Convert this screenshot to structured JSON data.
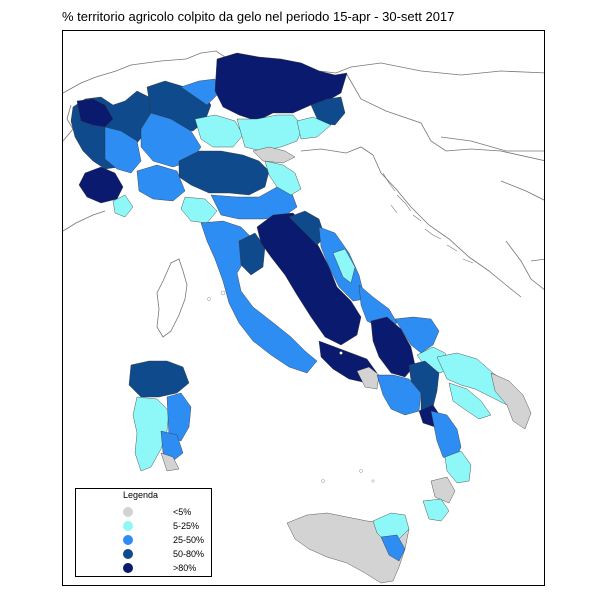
{
  "title": "% territorio agricolo colpito da gelo nel periodo 15-apr - 30-sett 2017",
  "colors": {
    "lt5": "#d3d3d3",
    "c5_25": "#8ef7f7",
    "c25_50": "#2d8df2",
    "c50_80": "#0f4a8c",
    "gt80": "#0a1a6e",
    "border": "#000000",
    "land_outline": "#888888"
  },
  "legend": {
    "title": "Legenda",
    "items": [
      {
        "label": "<5%",
        "color": "#d3d3d3"
      },
      {
        "label": "5-25%",
        "color": "#8ef7f7"
      },
      {
        "label": "25-50%",
        "color": "#2d8df2"
      },
      {
        "label": "50-80%",
        "color": "#0f4a8c"
      },
      {
        "label": ">80%",
        "color": "#0a1a6e"
      }
    ]
  }
}
